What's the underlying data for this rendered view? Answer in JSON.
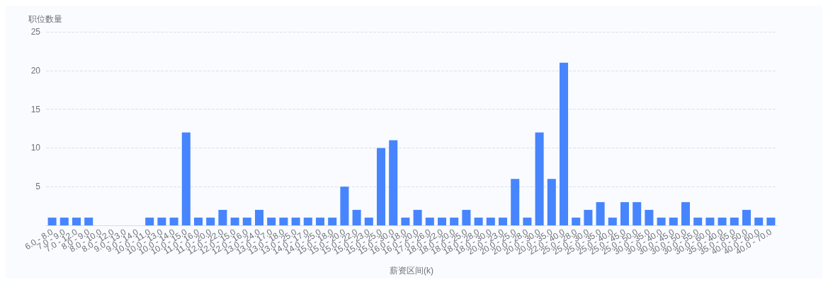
{
  "chart_data": {
    "type": "bar",
    "xlabel": "薪资区间(k)",
    "ylabel": "职位数量",
    "categories": [
      "6.0 - 8.0",
      "7.0 - 9.0",
      "7.0 - 12.0",
      "8.0 - 9.0",
      "8.0 - 10.0",
      "8.0 - 12.0",
      "9.0 - 13.0",
      "9.0 - 14.0",
      "10.0 - 11.0",
      "10.0 - 13.0",
      "10.0 - 14.0",
      "10.0 - 15.0",
      "11.0 - 16.0",
      "11.0 - 20.0",
      "12.0 - 22.0",
      "12.0 - 15.0",
      "12.0 - 16.0",
      "13.0 - 24.0",
      "13.0 - 17.0",
      "13.0 - 18.0",
      "13.0 - 25.0",
      "14.0 - 17.0",
      "14.0 - 25.0",
      "15.0 - 18.0",
      "15.0 - 20.0",
      "15.0 - 22.0",
      "15.0 - 23.0",
      "15.0 - 25.0",
      "15.0 - 30.0",
      "16.0 - 18.0",
      "16.0 - 20.0",
      "17.0 - 26.0",
      "18.0 - 22.0",
      "18.0 - 20.0",
      "18.0 - 25.0",
      "18.0 - 28.0",
      "18.0 - 30.0",
      "20.0 - 23.0",
      "20.0 - 25.0",
      "20.0 - 28.0",
      "20.0 - 30.0",
      "20.0 - 35.0",
      "22.0 - 40.0",
      "25.0 - 28.0",
      "25.0 - 30.0",
      "25.0 - 35.0",
      "25.0 - 40.0",
      "25.0 - 45.0",
      "25.0 - 50.0",
      "30.0 - 35.0",
      "30.0 - 40.0",
      "30.0 - 45.0",
      "30.0 - 50.0",
      "30.0 - 55.0",
      "30.0 - 60.0",
      "35.0 - 40.0",
      "35.0 - 65.0",
      "40.0 - 50.0",
      "40.0 - 60.0",
      "40.0 - 70.0"
    ],
    "values": [
      1,
      1,
      1,
      1,
      null,
      null,
      null,
      null,
      1,
      1,
      1,
      12,
      1,
      1,
      2,
      1,
      1,
      2,
      1,
      1,
      1,
      1,
      1,
      1,
      5,
      2,
      1,
      10,
      11,
      1,
      2,
      1,
      1,
      1,
      2,
      1,
      1,
      1,
      6,
      1,
      12,
      6,
      21,
      1,
      2,
      3,
      1,
      3,
      3,
      2,
      1,
      1,
      3,
      1,
      1,
      1,
      1,
      2,
      1,
      1
    ],
    "color": "#4785fe",
    "ylim": [
      0,
      25
    ],
    "yticks": [
      {
        "value": 0,
        "label": null
      },
      5,
      10,
      15,
      20,
      25
    ],
    "grid": "y"
  }
}
